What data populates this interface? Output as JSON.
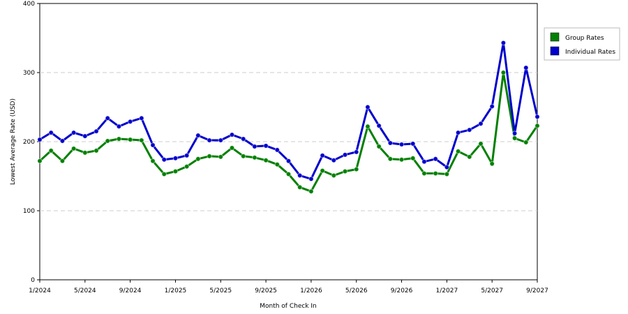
{
  "chart_data": {
    "type": "line",
    "xlabel": "Month of Check In",
    "ylabel": "Lowest Average Rate (USD)",
    "ylim": [
      0,
      400
    ],
    "yticks": [
      0,
      100,
      200,
      300,
      400
    ],
    "x_tick_labels": [
      "1/2024",
      "5/2024",
      "9/2024",
      "1/2025",
      "5/2025",
      "9/2025",
      "1/2026",
      "5/2026",
      "9/2026",
      "1/2027",
      "5/2027",
      "9/2027"
    ],
    "grid": "horizontal-dashed",
    "legend_position": "right",
    "x": [
      "1/2024",
      "2/2024",
      "3/2024",
      "4/2024",
      "5/2024",
      "6/2024",
      "7/2024",
      "8/2024",
      "9/2024",
      "10/2024",
      "11/2024",
      "12/2024",
      "1/2025",
      "2/2025",
      "3/2025",
      "4/2025",
      "5/2025",
      "6/2025",
      "7/2025",
      "8/2025",
      "9/2025",
      "10/2025",
      "11/2025",
      "12/2025",
      "1/2026",
      "2/2026",
      "3/2026",
      "4/2026",
      "5/2026",
      "6/2026",
      "7/2026",
      "8/2026",
      "9/2026",
      "10/2026",
      "11/2026",
      "12/2026",
      "1/2027",
      "2/2027",
      "3/2027",
      "4/2027",
      "5/2027",
      "6/2027",
      "7/2027",
      "8/2027",
      "9/2027"
    ],
    "series": [
      {
        "name": "Group Rates",
        "color": "#008000",
        "values": [
          172,
          187,
          172,
          190,
          184,
          187,
          201,
          204,
          203,
          202,
          172,
          153,
          157,
          164,
          175,
          179,
          178,
          191,
          179,
          177,
          173,
          167,
          153,
          134,
          128,
          158,
          151,
          157,
          160,
          222,
          193,
          175,
          174,
          176,
          154,
          154,
          153,
          186,
          178,
          197,
          168,
          300,
          205,
          199,
          223
        ]
      },
      {
        "name": "Individual Rates",
        "color": "#0000cc",
        "values": [
          203,
          213,
          201,
          213,
          208,
          215,
          234,
          222,
          229,
          234,
          195,
          174,
          176,
          180,
          209,
          202,
          202,
          210,
          204,
          193,
          194,
          188,
          172,
          151,
          146,
          180,
          173,
          181,
          185,
          250,
          223,
          198,
          196,
          197,
          171,
          175,
          163,
          213,
          217,
          226,
          251,
          343,
          212,
          307,
          236
        ]
      }
    ]
  }
}
